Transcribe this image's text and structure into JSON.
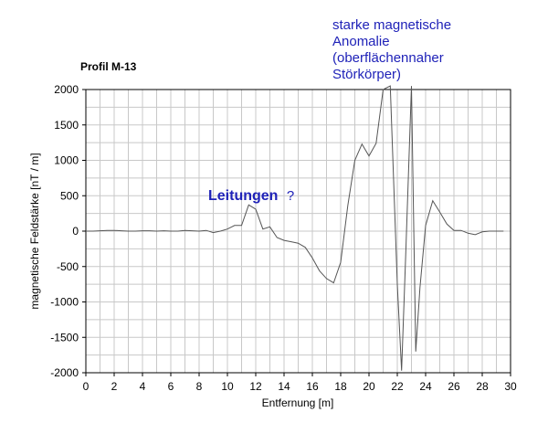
{
  "chart_data": {
    "type": "line",
    "title": "Profil M-13",
    "xlabel": "Entfernung [m]",
    "ylabel": "magnetische Feldstärke [nT / m]",
    "xlim": [
      0,
      30
    ],
    "ylim": [
      -2000,
      2000
    ],
    "x_ticks": [
      0,
      2,
      4,
      6,
      8,
      10,
      12,
      14,
      16,
      18,
      20,
      22,
      24,
      26,
      28,
      30
    ],
    "y_ticks": [
      -2000,
      -1500,
      -1000,
      -500,
      0,
      500,
      1000,
      1500,
      2000
    ],
    "grid": true,
    "series": [
      {
        "color": "#555555",
        "x": [
          0,
          0.5,
          1,
          1.5,
          2,
          2.5,
          3,
          3.5,
          4,
          4.5,
          5,
          5.5,
          6,
          6.5,
          7,
          7.5,
          8,
          8.5,
          9,
          9.5,
          10,
          10.5,
          11,
          11.5,
          12,
          12.5,
          13,
          13.5,
          14,
          14.5,
          15,
          15.5,
          16,
          16.5,
          17,
          17.5,
          18,
          18.5,
          19,
          19.5,
          20,
          20.5,
          21,
          21.5,
          22,
          22.3,
          22.6,
          23,
          23.3,
          23.6,
          24,
          24.5,
          25,
          25.5,
          26,
          26.5,
          27,
          27.5,
          28,
          28.5,
          29,
          29.5
        ],
        "y": [
          0,
          0,
          5,
          10,
          10,
          5,
          0,
          0,
          5,
          5,
          0,
          5,
          0,
          0,
          10,
          5,
          0,
          10,
          -20,
          0,
          30,
          80,
          80,
          370,
          310,
          30,
          60,
          -90,
          -130,
          -150,
          -170,
          -230,
          -380,
          -560,
          -670,
          -730,
          -440,
          360,
          1000,
          1230,
          1060,
          1240,
          2000,
          2050,
          -750,
          -1970,
          -300,
          2050,
          -1700,
          -800,
          80,
          430,
          270,
          100,
          10,
          10,
          -30,
          -50,
          -10,
          0,
          0,
          0
        ]
      }
    ],
    "annotations": [
      {
        "text": "Leitungen",
        "suffix": "?"
      },
      {
        "lines": [
          "starke magnetische",
          "Anomalie",
          "(oberflächennaher",
          "Störkörper)"
        ]
      }
    ]
  }
}
